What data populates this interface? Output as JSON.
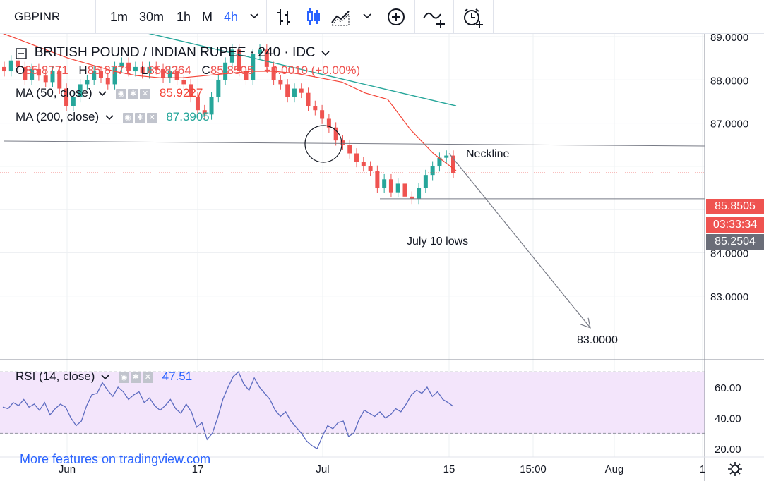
{
  "toolbar": {
    "symbol": "GBPINR",
    "intervals": [
      "1m",
      "30m",
      "1h",
      "M",
      "4h"
    ],
    "active_interval": "4h",
    "icons": [
      "chevron-down-icon",
      "bar-chart-icon",
      "candles-icon",
      "area-chart-icon",
      "chevron-down-icon",
      "add-indicator-icon",
      "compare-icon",
      "alert-icon"
    ]
  },
  "legend": {
    "title": "BRITISH POUND / INDIAN RUPEE · 240 · IDC",
    "ohlc": {
      "o_label": "O",
      "o": "85.8771",
      "h_label": "H",
      "h": "85.8771",
      "l_label": "L",
      "l": "85.8264",
      "c_label": "C",
      "c": "85.8505",
      "change": "+0.0010 (+0.00%)"
    },
    "ma50": {
      "label": "MA (50, close)",
      "value": "85.9227"
    },
    "ma200": {
      "label": "MA (200, close)",
      "value": "87.3905"
    }
  },
  "annotations": {
    "neckline": "Neckline",
    "july_lows": "July 10 lows",
    "target": "83.0000"
  },
  "price_tags": {
    "last": "85.8505",
    "countdown": "03:33:34",
    "level": "85.2504"
  },
  "rsi": {
    "label": "RSI (14, close)",
    "value": "47.51"
  },
  "watermark": "More features on tradingview.com",
  "colors": {
    "up": "#26a69a",
    "down": "#ef5350",
    "ma50": "#f44336",
    "ma200": "#26a69a",
    "rsi": "#5c6bc0",
    "accent": "#2962ff"
  },
  "chart_data": [
    {
      "type": "candlestick",
      "symbol": "GBPINR",
      "ylim": [
        82.3,
        89.8
      ],
      "y_ticks": [
        "89.0000",
        "88.0000",
        "87.0000",
        "84.0000",
        "83.0000"
      ],
      "x_tick_labels": [
        "Jun",
        "17",
        "Jul",
        "15",
        "15:00",
        "Aug",
        "1"
      ],
      "closes": [
        88.2,
        88.45,
        88.3,
        88.0,
        88.25,
        88.1,
        87.95,
        88.2,
        87.8,
        87.4,
        87.6,
        87.9,
        88.0,
        88.2,
        88.05,
        87.9,
        88.3,
        88.4,
        88.2,
        88.3,
        88.15,
        88.3,
        88.25,
        88.05,
        88.2,
        88.0,
        87.9,
        87.6,
        87.3,
        87.2,
        87.6,
        88.0,
        88.4,
        88.7,
        88.2,
        88.0,
        88.6,
        88.7,
        88.3,
        88.0,
        87.9,
        87.6,
        87.8,
        87.7,
        87.4,
        87.3,
        87.1,
        86.9,
        86.6,
        86.5,
        86.3,
        86.1,
        86.0,
        85.9,
        85.5,
        85.7,
        85.4,
        85.6,
        85.3,
        85.25,
        85.5,
        85.8,
        86.0,
        86.2,
        86.25,
        85.85
      ],
      "ma50_y": [
        89.1,
        88.9,
        88.7,
        88.5,
        88.35,
        88.2,
        88.1,
        88.05,
        88.05,
        88.1,
        88.15,
        88.2,
        88.2,
        88.15,
        88.05,
        87.95,
        87.7,
        87.55,
        86.85,
        86.3,
        85.9
      ],
      "ma200_y": [
        89.6,
        89.2,
        88.9,
        88.6,
        88.3,
        88.0,
        87.7,
        87.4
      ],
      "neckline": 87.35,
      "july_10_low": 85.25,
      "projection_target": 83.0,
      "last_price": 85.8505,
      "level_line": 85.2504
    },
    {
      "type": "line",
      "name": "RSI (14, close)",
      "ylim": [
        15,
        75
      ],
      "y_ticks": [
        "60.00",
        "40.00",
        "20.00"
      ],
      "band": [
        30,
        70
      ],
      "values": [
        47,
        46,
        50,
        48,
        52,
        47,
        49,
        45,
        50,
        42,
        46,
        49,
        47,
        40,
        35,
        38,
        48,
        55,
        56,
        63,
        58,
        54,
        60,
        57,
        52,
        55,
        57,
        50,
        53,
        48,
        45,
        48,
        52,
        46,
        43,
        49,
        44,
        34,
        37,
        26,
        30,
        40,
        52,
        60,
        67,
        70,
        62,
        58,
        66,
        60,
        56,
        52,
        45,
        41,
        44,
        38,
        34,
        30,
        25,
        22,
        20,
        28,
        35,
        33,
        37,
        38,
        28,
        30,
        39,
        45,
        43,
        41,
        44,
        40,
        42,
        46,
        44,
        49,
        55,
        58,
        56,
        60,
        54,
        57,
        52,
        50,
        47.51
      ]
    }
  ]
}
